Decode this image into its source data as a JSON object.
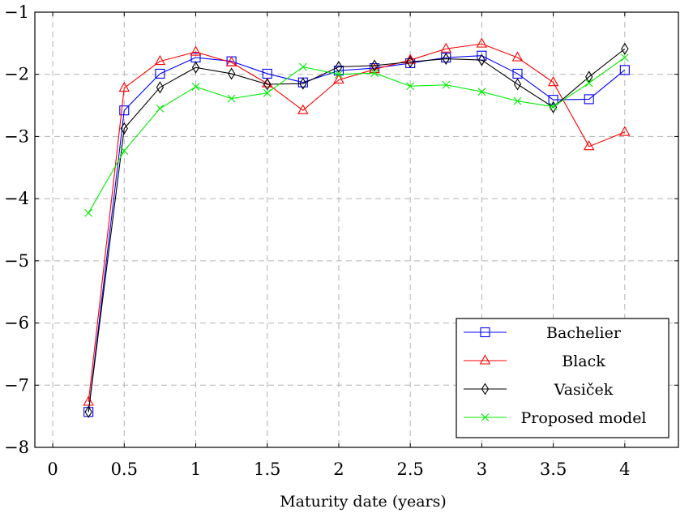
{
  "chart_data": {
    "type": "line",
    "title": "",
    "xlabel": "Maturity date (years)",
    "ylabel": "",
    "xlim": [
      -0.125,
      4.375
    ],
    "ylim": [
      -8,
      -1
    ],
    "xticks": [
      0,
      0.5,
      1,
      1.5,
      2,
      2.5,
      3,
      3.5,
      4
    ],
    "xtick_labels": [
      "0",
      "0.5",
      "1",
      "1.5",
      "2",
      "2.5",
      "3",
      "3.5",
      "4"
    ],
    "yticks": [
      -8,
      -7,
      -6,
      -5,
      -4,
      -3,
      -2,
      -1
    ],
    "ytick_labels": [
      "−8",
      "−7",
      "−6",
      "−5",
      "−4",
      "−3",
      "−2",
      "−1"
    ],
    "grid": true,
    "legend_position": "bottom-right",
    "x": [
      0.25,
      0.5,
      0.75,
      1,
      1.25,
      1.5,
      1.75,
      2,
      2.25,
      2.5,
      2.75,
      3,
      3.25,
      3.5,
      3.75,
      4
    ],
    "series": [
      {
        "name": "Bachelier",
        "color": "#0000ff",
        "marker": "square",
        "values": [
          -7.43,
          -2.58,
          -1.99,
          -1.73,
          -1.79,
          -1.99,
          -2.13,
          -1.94,
          -1.9,
          -1.82,
          -1.73,
          -1.7,
          -1.99,
          -2.41,
          -2.4,
          -1.93
        ]
      },
      {
        "name": "Black",
        "color": "#ff0000",
        "marker": "triangle",
        "values": [
          -7.27,
          -2.22,
          -1.79,
          -1.64,
          -1.81,
          -2.15,
          -2.58,
          -2.09,
          -1.92,
          -1.77,
          -1.59,
          -1.51,
          -1.73,
          -2.13,
          -3.16,
          -2.93
        ]
      },
      {
        "name": "Vasiček",
        "color": "#000000",
        "marker": "diamond",
        "values": [
          -7.43,
          -2.87,
          -2.21,
          -1.89,
          -1.99,
          -2.16,
          -2.15,
          -1.88,
          -1.86,
          -1.8,
          -1.75,
          -1.77,
          -2.16,
          -2.53,
          -2.04,
          -1.59
        ]
      },
      {
        "name": "Proposed model",
        "color": "#00ee00",
        "marker": "x",
        "values": [
          -4.23,
          -3.23,
          -2.55,
          -2.2,
          -2.39,
          -2.3,
          -1.88,
          -2.0,
          -1.98,
          -2.19,
          -2.17,
          -2.28,
          -2.43,
          -2.52,
          -2.14,
          -1.73
        ]
      }
    ]
  }
}
